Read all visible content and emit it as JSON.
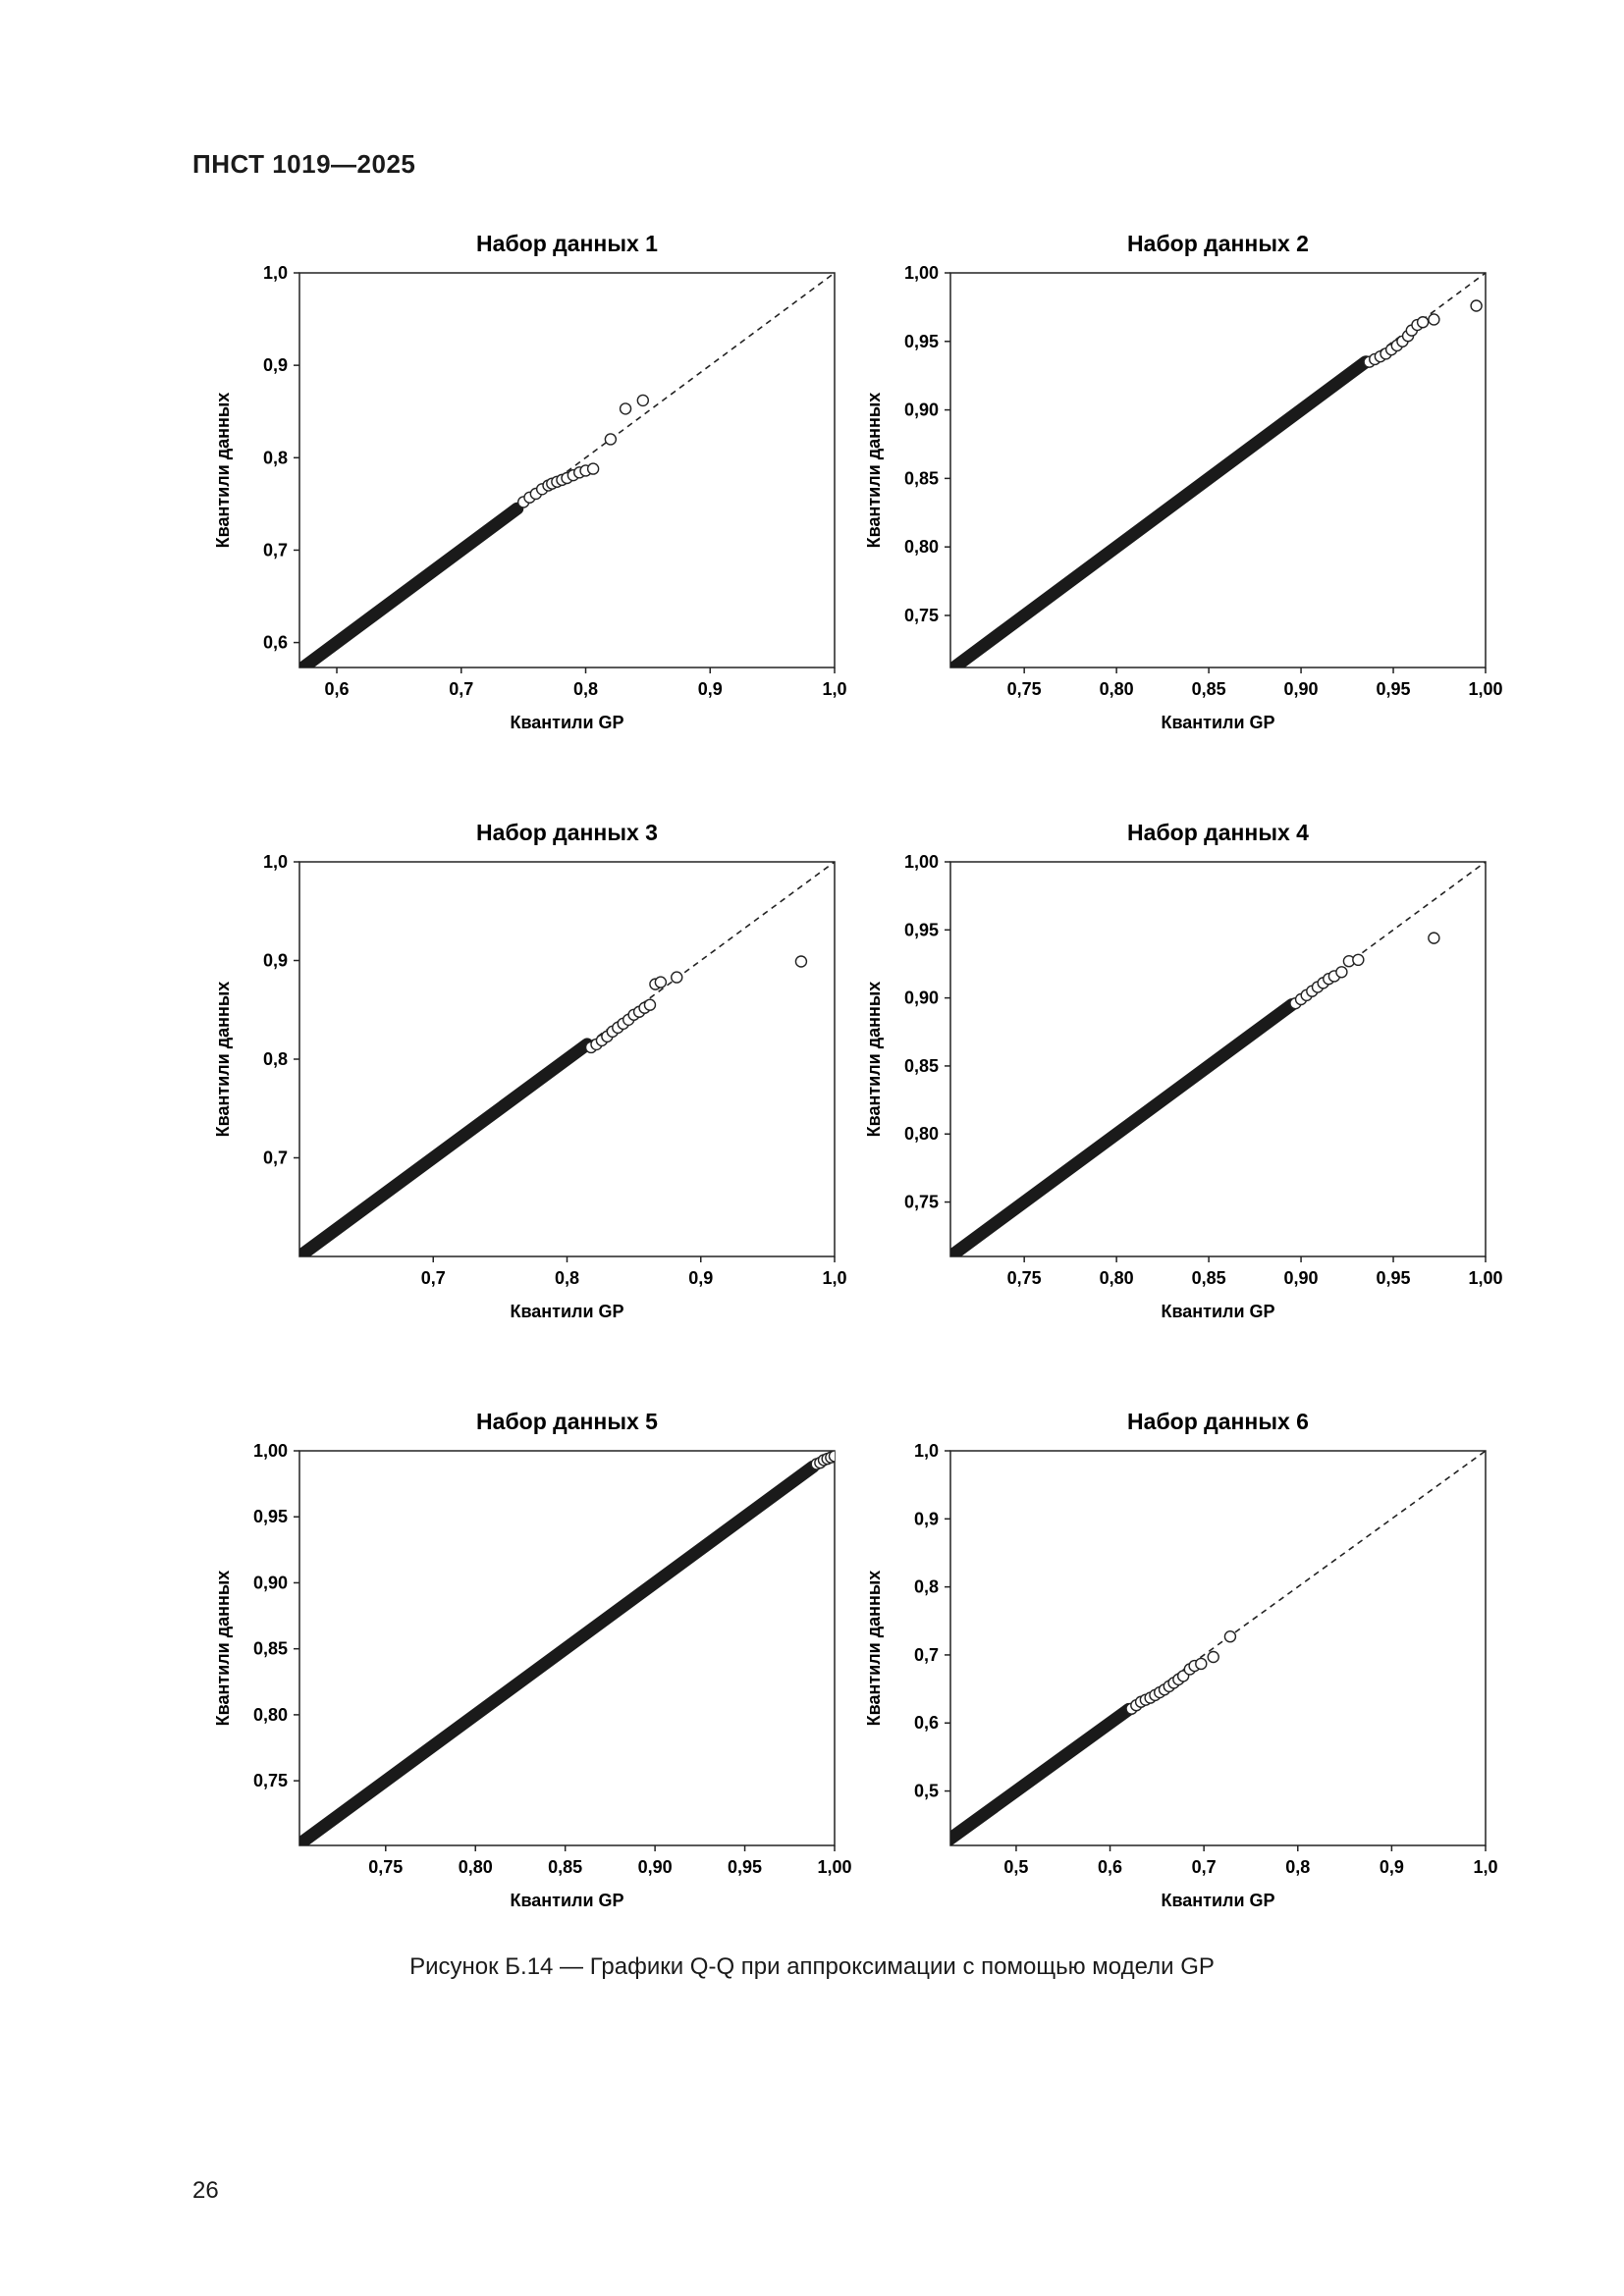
{
  "header": {
    "doc_code": "ПНСТ 1019—2025"
  },
  "caption": "Рисунок Б.14 — Графики Q-Q при аппроксимации с помощью модели GP",
  "page_number": "26",
  "chart_data": [
    {
      "type": "scatter",
      "title": "Набор данных 1",
      "xlabel": "Квантили GP",
      "ylabel": "Квантили данных",
      "xlim": [
        0.57,
        1.0
      ],
      "ylim": [
        0.573,
        1.0
      ],
      "xticks": [
        0.6,
        0.7,
        0.8,
        0.9,
        1.0
      ],
      "xtick_labels": [
        "0,6",
        "0,7",
        "0,8",
        "0,9",
        "1,0"
      ],
      "yticks": [
        0.6,
        0.7,
        0.8,
        0.9,
        1.0
      ],
      "ytick_labels": [
        "0,6",
        "0,7",
        "0,8",
        "0,9",
        "1,0"
      ],
      "reference_line": "y = x (dashed)",
      "dense_fit": {
        "from": 0.57,
        "to": 0.745
      },
      "points": [
        [
          0.75,
          0.752
        ],
        [
          0.755,
          0.757
        ],
        [
          0.76,
          0.761
        ],
        [
          0.765,
          0.766
        ],
        [
          0.77,
          0.77
        ],
        [
          0.773,
          0.772
        ],
        [
          0.777,
          0.774
        ],
        [
          0.781,
          0.776
        ],
        [
          0.785,
          0.778
        ],
        [
          0.79,
          0.781
        ],
        [
          0.795,
          0.784
        ],
        [
          0.8,
          0.786
        ],
        [
          0.806,
          0.788
        ],
        [
          0.82,
          0.82
        ],
        [
          0.832,
          0.853
        ],
        [
          0.846,
          0.862
        ]
      ]
    },
    {
      "type": "scatter",
      "title": "Набор данных 2",
      "xlabel": "Квантили GP",
      "ylabel": "Квантили данных",
      "xlim": [
        0.71,
        1.0
      ],
      "ylim": [
        0.712,
        1.0
      ],
      "xticks": [
        0.75,
        0.8,
        0.85,
        0.9,
        0.95,
        1.0
      ],
      "xtick_labels": [
        "0,75",
        "0,80",
        "0,85",
        "0,90",
        "0,95",
        "1,00"
      ],
      "yticks": [
        0.75,
        0.8,
        0.85,
        0.9,
        0.95,
        1.0
      ],
      "ytick_labels": [
        "0,75",
        "0,80",
        "0,85",
        "0,90",
        "0,95",
        "1,00"
      ],
      "reference_line": "y = x (dashed)",
      "dense_fit": {
        "from": 0.71,
        "to": 0.935
      },
      "points": [
        [
          0.937,
          0.935
        ],
        [
          0.94,
          0.937
        ],
        [
          0.943,
          0.939
        ],
        [
          0.946,
          0.941
        ],
        [
          0.949,
          0.944
        ],
        [
          0.952,
          0.947
        ],
        [
          0.955,
          0.95
        ],
        [
          0.958,
          0.954
        ],
        [
          0.96,
          0.958
        ],
        [
          0.963,
          0.962
        ],
        [
          0.966,
          0.964
        ],
        [
          0.972,
          0.966
        ],
        [
          0.995,
          0.976
        ]
      ]
    },
    {
      "type": "scatter",
      "title": "Набор данных 3",
      "xlabel": "Квантили GP",
      "ylabel": "Квантили данных",
      "xlim": [
        0.6,
        1.0
      ],
      "ylim": [
        0.6,
        1.0
      ],
      "xticks": [
        0.7,
        0.8,
        0.9,
        1.0
      ],
      "xtick_labels": [
        "0,7",
        "0,8",
        "0,9",
        "1,0"
      ],
      "yticks": [
        0.7,
        0.8,
        0.9,
        1.0
      ],
      "ytick_labels": [
        "0,7",
        "0,8",
        "0,9",
        "1,0"
      ],
      "reference_line": "y = x (dashed)",
      "dense_fit": {
        "from": 0.6,
        "to": 0.815
      },
      "points": [
        [
          0.818,
          0.812
        ],
        [
          0.822,
          0.815
        ],
        [
          0.826,
          0.819
        ],
        [
          0.83,
          0.823
        ],
        [
          0.834,
          0.828
        ],
        [
          0.838,
          0.832
        ],
        [
          0.842,
          0.836
        ],
        [
          0.846,
          0.84
        ],
        [
          0.85,
          0.845
        ],
        [
          0.854,
          0.848
        ],
        [
          0.858,
          0.852
        ],
        [
          0.862,
          0.855
        ],
        [
          0.866,
          0.876
        ],
        [
          0.87,
          0.878
        ],
        [
          0.882,
          0.883
        ],
        [
          0.975,
          0.899
        ]
      ]
    },
    {
      "type": "scatter",
      "title": "Набор данных 4",
      "xlabel": "Квантили GP",
      "ylabel": "Квантили данных",
      "xlim": [
        0.71,
        1.0
      ],
      "ylim": [
        0.71,
        1.0
      ],
      "xticks": [
        0.75,
        0.8,
        0.85,
        0.9,
        0.95,
        1.0
      ],
      "xtick_labels": [
        "0,75",
        "0,80",
        "0,85",
        "0,90",
        "0,95",
        "1,00"
      ],
      "yticks": [
        0.75,
        0.8,
        0.85,
        0.9,
        0.95,
        1.0
      ],
      "ytick_labels": [
        "0,75",
        "0,80",
        "0,85",
        "0,90",
        "0,95",
        "1,00"
      ],
      "reference_line": "y = x (dashed)",
      "dense_fit": {
        "from": 0.71,
        "to": 0.895
      },
      "points": [
        [
          0.897,
          0.896
        ],
        [
          0.9,
          0.899
        ],
        [
          0.903,
          0.902
        ],
        [
          0.906,
          0.905
        ],
        [
          0.909,
          0.908
        ],
        [
          0.912,
          0.911
        ],
        [
          0.915,
          0.914
        ],
        [
          0.918,
          0.916
        ],
        [
          0.922,
          0.919
        ],
        [
          0.926,
          0.927
        ],
        [
          0.931,
          0.928
        ],
        [
          0.972,
          0.944
        ]
      ]
    },
    {
      "type": "scatter",
      "title": "Набор данных 5",
      "xlabel": "Квантили GP",
      "ylabel": "Квантили данных",
      "xlim": [
        0.702,
        1.0
      ],
      "ylim": [
        0.701,
        1.0
      ],
      "xticks": [
        0.75,
        0.8,
        0.85,
        0.9,
        0.95,
        1.0
      ],
      "xtick_labels": [
        "0,75",
        "0,80",
        "0,85",
        "0,90",
        "0,95",
        "1,00"
      ],
      "yticks": [
        0.75,
        0.8,
        0.85,
        0.9,
        0.95,
        1.0
      ],
      "ytick_labels": [
        "0,75",
        "0,80",
        "0,85",
        "0,90",
        "0,95",
        "1,00"
      ],
      "reference_line": "y = x (dashed)",
      "dense_fit": {
        "from": 0.702,
        "to": 0.988
      },
      "points": [
        [
          0.99,
          0.99
        ],
        [
          0.992,
          0.991
        ],
        [
          0.994,
          0.993
        ],
        [
          0.996,
          0.994
        ],
        [
          0.998,
          0.995
        ],
        [
          1.0,
          0.996
        ]
      ]
    },
    {
      "type": "scatter",
      "title": "Набор данных 6",
      "xlabel": "Квантили GP",
      "ylabel": "Квантили данных",
      "xlim": [
        0.43,
        1.0
      ],
      "ylim": [
        0.42,
        1.0
      ],
      "xticks": [
        0.5,
        0.6,
        0.7,
        0.8,
        0.9,
        1.0
      ],
      "xtick_labels": [
        "0,5",
        "0,6",
        "0,7",
        "0,8",
        "0,9",
        "1,0"
      ],
      "yticks": [
        0.5,
        0.6,
        0.7,
        0.8,
        0.9,
        1.0
      ],
      "ytick_labels": [
        "0,5",
        "0,6",
        "0,7",
        "0,8",
        "0,9",
        "1,0"
      ],
      "reference_line": "y = x (dashed)",
      "dense_fit": {
        "from": 0.43,
        "to": 0.62
      },
      "points": [
        [
          0.623,
          0.621
        ],
        [
          0.628,
          0.626
        ],
        [
          0.633,
          0.631
        ],
        [
          0.638,
          0.634
        ],
        [
          0.643,
          0.637
        ],
        [
          0.648,
          0.641
        ],
        [
          0.653,
          0.645
        ],
        [
          0.658,
          0.649
        ],
        [
          0.663,
          0.654
        ],
        [
          0.668,
          0.659
        ],
        [
          0.673,
          0.664
        ],
        [
          0.678,
          0.669
        ],
        [
          0.685,
          0.679
        ],
        [
          0.69,
          0.684
        ],
        [
          0.697,
          0.687
        ],
        [
          0.71,
          0.697
        ],
        [
          0.728,
          0.727
        ]
      ]
    }
  ]
}
